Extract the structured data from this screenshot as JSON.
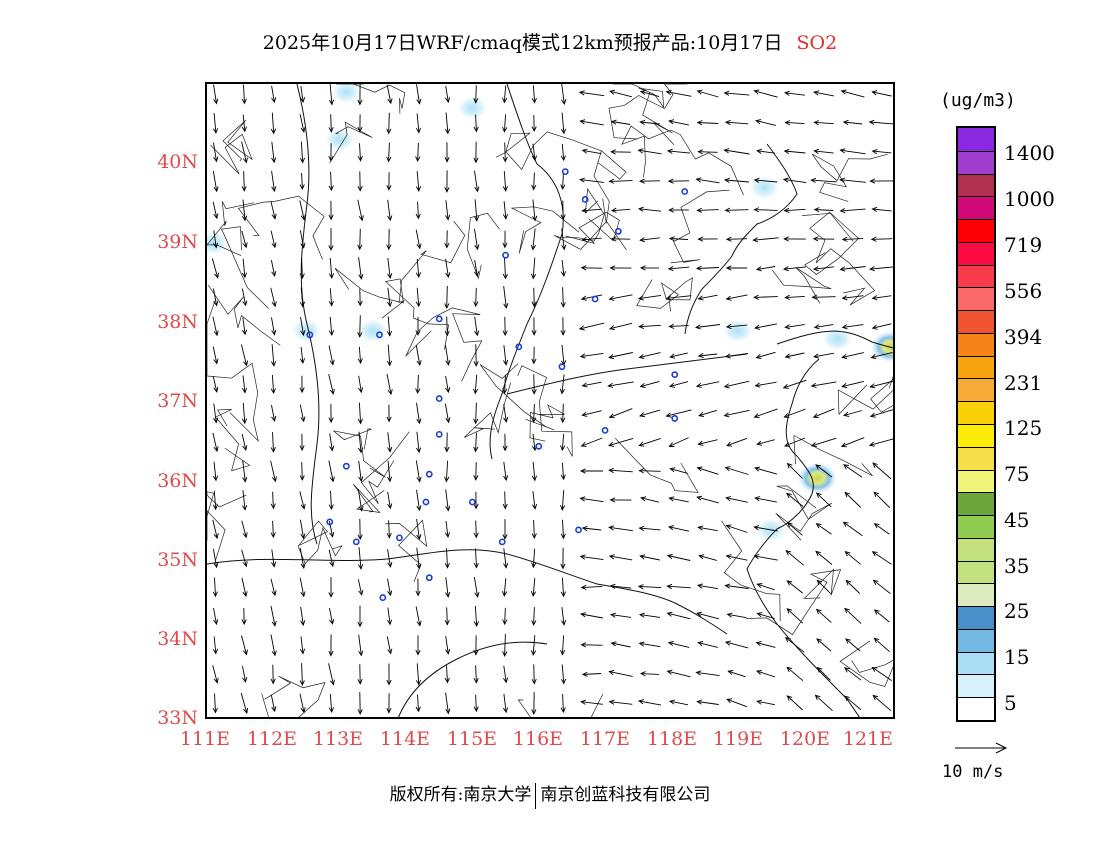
{
  "title": {
    "text": "2025年10月17日WRF/cmaq模式12km预报产品:10月17日",
    "pollutant": "SO2"
  },
  "map": {
    "type": "pollution-wind-map",
    "lat_labels": [
      "40N",
      "39N",
      "38N",
      "37N",
      "36N",
      "35N",
      "34N",
      "33N"
    ],
    "lon_labels": [
      "111E",
      "112E",
      "113E",
      "114E",
      "115E",
      "116E",
      "117E",
      "118E",
      "119E",
      "120E",
      "121E"
    ],
    "lat_range": [
      33,
      41
    ],
    "lon_range": [
      111,
      121.4
    ],
    "wind_field": "northerly over inland, northeasterly/easterly toward east coast",
    "so2_hotspots": [
      {
        "lon": 120.2,
        "lat": 36.05,
        "level": "45-75"
      },
      {
        "lon": 121.3,
        "lat": 37.7,
        "level": "45-75"
      },
      {
        "lon": 120.5,
        "lat": 37.8,
        "level": "5-25"
      },
      {
        "lon": 119.0,
        "lat": 37.9,
        "level": "5-25"
      },
      {
        "lon": 113.5,
        "lat": 37.9,
        "level": "5-25"
      },
      {
        "lon": 112.5,
        "lat": 37.9,
        "level": "5-25"
      },
      {
        "lon": 113.0,
        "lat": 40.3,
        "level": "5-25"
      },
      {
        "lon": 113.1,
        "lat": 40.9,
        "level": "5-25"
      },
      {
        "lon": 111.1,
        "lat": 39.0,
        "level": "5-25"
      },
      {
        "lon": 115.0,
        "lat": 40.7,
        "level": "5-25"
      },
      {
        "lon": 119.4,
        "lat": 39.7,
        "level": "5-25"
      },
      {
        "lon": 119.5,
        "lat": 35.4,
        "level": "5-25"
      }
    ],
    "city_markers": [
      [
        116.4,
        39.9
      ],
      [
        116.7,
        39.55
      ],
      [
        118.2,
        39.65
      ],
      [
        117.2,
        39.15
      ],
      [
        115.5,
        38.85
      ],
      [
        116.85,
        38.3
      ],
      [
        112.55,
        37.85
      ],
      [
        113.6,
        37.85
      ],
      [
        114.5,
        38.05
      ],
      [
        115.7,
        37.7
      ],
      [
        116.35,
        37.45
      ],
      [
        118.05,
        37.35
      ],
      [
        114.5,
        37.05
      ],
      [
        114.5,
        36.6
      ],
      [
        116.0,
        36.45
      ],
      [
        117.0,
        36.65
      ],
      [
        118.05,
        36.8
      ],
      [
        113.1,
        36.2
      ],
      [
        114.35,
        36.1
      ],
      [
        114.3,
        35.75
      ],
      [
        115.0,
        35.75
      ],
      [
        112.85,
        35.5
      ],
      [
        113.25,
        35.25
      ],
      [
        113.9,
        35.3
      ],
      [
        115.45,
        35.25
      ],
      [
        116.6,
        35.4
      ],
      [
        114.35,
        34.8
      ],
      [
        113.65,
        34.55
      ]
    ]
  },
  "colorbar": {
    "unit": "(ug/m3)",
    "colors": [
      "#ffffff",
      "#d8f0fa",
      "#a8def6",
      "#74b8e4",
      "#4a90c8",
      "#dcebbe",
      "#c2e07e",
      "#c2e07e",
      "#90cc50",
      "#6aa63c",
      "#f0f478",
      "#f6de48",
      "#fcea08",
      "#fad008",
      "#f8aa38",
      "#f8a410",
      "#f4841a",
      "#f05430",
      "#fa6868",
      "#f83a4a",
      "#fc0a44",
      "#fc0004",
      "#d20a78",
      "#b03050",
      "#a03cce",
      "#8a2ae0"
    ],
    "labels": [
      "5",
      "15",
      "25",
      "35",
      "45",
      "75",
      "125",
      "231",
      "394",
      "556",
      "719",
      "1000",
      "1400"
    ]
  },
  "reference_vector": {
    "label": "10 m/s"
  },
  "footer": {
    "left": "版权所有:南京大学",
    "right": "南京创蓝科技有限公司"
  }
}
